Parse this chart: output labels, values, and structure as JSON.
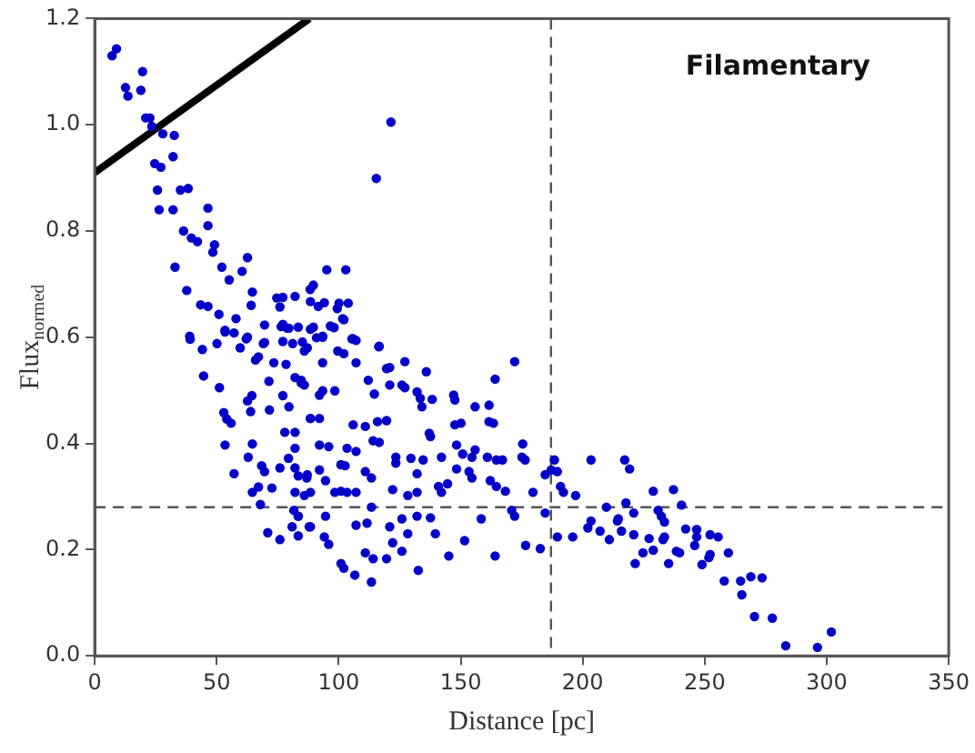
{
  "chart_data": {
    "type": "scatter",
    "xlabel": "Distance [pc]",
    "ylabel": "Flux$_{normed}$",
    "annotations": [
      "Filamentary"
    ],
    "xlim": [
      0,
      350
    ],
    "xticks": [
      0,
      50,
      100,
      150,
      200,
      250,
      300,
      350
    ],
    "ylim": [
      0,
      1.2
    ],
    "yticks": [
      {
        "value": 0,
        "label": "0.0"
      },
      {
        "value": 0.2,
        "label": "0.2"
      },
      {
        "value": 0.4,
        "label": "0.4"
      },
      {
        "value": 0.6,
        "label": "0.6"
      },
      {
        "value": 0.8,
        "label": "0.8"
      },
      {
        "value": 1,
        "label": "1.0"
      },
      {
        "value": 1.2,
        "label": "1.2"
      }
    ],
    "grid": false,
    "legend": false,
    "marker": "circle",
    "ref_lines": [
      {
        "axis": "x",
        "value": 187,
        "color": "#555555",
        "line_style": "dashed"
      },
      {
        "axis": "y",
        "value": 0.28,
        "color": "#555555",
        "line_style": "dashed"
      }
    ],
    "series": [
      {
        "color": "#0000c8",
        "x": [
          7.1,
          8.9,
          12.6,
          13.6,
          18.9,
          19.6,
          20.9,
          22.6,
          23.4,
          27.9,
          32.6,
          24.6,
          27.1,
          32.1,
          25.7,
          35.1,
          38.3,
          26.4,
          32.1,
          36.4,
          39.6,
          42.1,
          46.4,
          46.4,
          32.9,
          49.1,
          48.4,
          52.1,
          55.1,
          60.4,
          62.6,
          37.7,
          43.4,
          46.4,
          50.9,
          57.9,
          53.4,
          64.6,
          64.1,
          74.6,
          77.1,
          82.1,
          75.9,
          69.6,
          77.1,
          78.9,
          62.6,
          69.6,
          88.4,
          88.3,
          38.9,
          39.1,
          44.1,
          50.1,
          53.4,
          57.1,
          59.6,
          62.1,
          69.1,
          76.4,
          79.6,
          77.1,
          81.1,
          85.9,
          67.1,
          65.9,
          73.4,
          78.4,
          44.6,
          51.1,
          71.4,
          82.1,
          84.6,
          62.6,
          64.4,
          77.1,
          71.6,
          79.6,
          63.9,
          88.4,
          52.9,
          54.1,
          55.9,
          53.4,
          64.6,
          77.9,
          82.1,
          62.9,
          79.4,
          57.1,
          68.4,
          69.6,
          75.9,
          82.1,
          83.4,
          86.9,
          64.6,
          67.1,
          72.6,
          67.9,
          81.6,
          83.4,
          80.9,
          87.9,
          70.9,
          75.9,
          83.4,
          121.4,
          115.4,
          95.1,
          102.9,
          89.6,
          100.1,
          103.9,
          91.6,
          94.1,
          99.4,
          102.1,
          88.4,
          93.4,
          90.9,
          98.1,
          105.4,
          107.1,
          116.4,
          83.4,
          89.6,
          93.4,
          96.6,
          101.6,
          85.1,
          87.1,
          99.6,
          102.1,
          105.9,
          116.6,
          93.4,
          107.1,
          84.6,
          85.9,
          112.1,
          119.6,
          120.9,
          127.1,
          120.9,
          125.9,
          127.1,
          135.9,
          92.1,
          93.4,
          98.4,
          114.6,
          132.1,
          133.4,
          134.1,
          138.3,
          147.1,
          147.6,
          155.9,
          161.6,
          164.1,
          172.1,
          88.4,
          92.1,
          105.9,
          110.9,
          115.9,
          119.6,
          137.1,
          137.6,
          147.6,
          150.1,
          161.6,
          163.4,
          82.1,
          92.1,
          95.9,
          103.4,
          107.1,
          114.1,
          116.6,
          123.4,
          123.4,
          129.6,
          134.6,
          142.1,
          148.3,
          150.8,
          154.6,
          155.9,
          160.9,
          164.6,
          167.1,
          175.1,
          176.4,
          175.4,
          188.4,
          184.6,
          187.1,
          189.6,
          203.4,
          87.1,
          92.1,
          94.6,
          100.9,
          102.6,
          110.9,
          113.4,
          132.1,
          140.9,
          142.1,
          144.6,
          148.3,
          153.4,
          154.6,
          162.1,
          164.6,
          168.3,
          82.1,
          85.9,
          88.4,
          98.4,
          100.9,
          103.4,
          107.1,
          122.1,
          128.3,
          132.1,
          179.6,
          190.9,
          192.1,
          197.1,
          83.4,
          88.4,
          94.6,
          107.1,
          111.6,
          113.4,
          120.9,
          125.9,
          128.3,
          132.1,
          137.6,
          139.6,
          158.4,
          170.9,
          172.1,
          184.6,
          189.6,
          195.9,
          203.4,
          202.1,
          207.1,
          210.9,
          214.6,
          94.1,
          95.9,
          110.9,
          114.1,
          119.6,
          122.1,
          125.9,
          100.9,
          102.1,
          106.6,
          113.4,
          132.6,
          145.1,
          151.6,
          164.1,
          176.6,
          182.6,
          217.2,
          219.2,
          209.7,
          214.2,
          215.9,
          217.7,
          220.9,
          220.9,
          227.2,
          224.7,
          221.5,
          228.9,
          230.9,
          232.2,
          233.5,
          232.9,
          233.5,
          228.9,
          235.2,
          237.2,
          240.5,
          238.4,
          239.7,
          242.2,
          246.7,
          246.7,
          245.9,
          252.2,
          255.5,
          251.7,
          252.2,
          248.9,
          259.7,
          258,
          264.7,
          268.9,
          273.5,
          265.2,
          270.4,
          277.7,
          283.2,
          296.2,
          301.9
        ],
        "values": [
          1.13,
          1.143,
          1.07,
          1.054,
          1.065,
          1.1,
          1.013,
          1.013,
          0.997,
          0.983,
          0.98,
          0.927,
          0.92,
          0.94,
          0.877,
          0.877,
          0.88,
          0.84,
          0.84,
          0.8,
          0.787,
          0.78,
          0.843,
          0.81,
          0.732,
          0.774,
          0.76,
          0.732,
          0.708,
          0.724,
          0.75,
          0.688,
          0.661,
          0.658,
          0.643,
          0.635,
          0.61,
          0.685,
          0.66,
          0.674,
          0.675,
          0.677,
          0.657,
          0.623,
          0.624,
          0.617,
          0.6,
          0.59,
          0.667,
          0.69,
          0.602,
          0.596,
          0.577,
          0.588,
          0.613,
          0.608,
          0.58,
          0.597,
          0.588,
          0.62,
          0.617,
          0.592,
          0.588,
          0.574,
          0.563,
          0.557,
          0.552,
          0.549,
          0.527,
          0.505,
          0.517,
          0.524,
          0.514,
          0.48,
          0.49,
          0.49,
          0.463,
          0.469,
          0.46,
          0.447,
          0.458,
          0.446,
          0.438,
          0.397,
          0.399,
          0.421,
          0.421,
          0.374,
          0.372,
          0.343,
          0.358,
          0.347,
          0.354,
          0.354,
          0.339,
          0.335,
          0.308,
          0.318,
          0.316,
          0.285,
          0.274,
          0.263,
          0.243,
          0.243,
          0.232,
          0.219,
          0.226,
          1.005,
          0.899,
          0.727,
          0.727,
          0.698,
          0.664,
          0.664,
          0.658,
          0.665,
          0.654,
          0.633,
          0.615,
          0.6,
          0.599,
          0.618,
          0.597,
          0.594,
          0.582,
          0.619,
          0.619,
          0.602,
          0.621,
          0.635,
          0.591,
          0.58,
          0.574,
          0.569,
          0.597,
          0.583,
          0.552,
          0.552,
          0.519,
          0.51,
          0.519,
          0.541,
          0.543,
          0.554,
          0.51,
          0.51,
          0.505,
          0.535,
          0.491,
          0.499,
          0.499,
          0.493,
          0.497,
          0.485,
          0.469,
          0.483,
          0.491,
          0.482,
          0.469,
          0.472,
          0.521,
          0.554,
          0.447,
          0.447,
          0.435,
          0.432,
          0.441,
          0.443,
          0.419,
          0.413,
          0.435,
          0.438,
          0.441,
          0.438,
          0.391,
          0.397,
          0.394,
          0.391,
          0.385,
          0.405,
          0.402,
          0.374,
          0.363,
          0.372,
          0.369,
          0.374,
          0.397,
          0.38,
          0.374,
          0.388,
          0.374,
          0.369,
          0.369,
          0.374,
          0.369,
          0.399,
          0.369,
          0.341,
          0.35,
          0.347,
          0.369,
          0.341,
          0.35,
          0.33,
          0.36,
          0.358,
          0.347,
          0.335,
          0.343,
          0.319,
          0.308,
          0.324,
          0.352,
          0.347,
          0.335,
          0.33,
          0.319,
          0.31,
          0.308,
          0.302,
          0.308,
          0.308,
          0.31,
          0.308,
          0.308,
          0.313,
          0.302,
          0.308,
          0.308,
          0.319,
          0.308,
          0.302,
          0.263,
          0.243,
          0.263,
          0.246,
          0.25,
          0.28,
          0.243,
          0.258,
          0.23,
          0.263,
          0.26,
          0.23,
          0.258,
          0.274,
          0.263,
          0.269,
          0.224,
          0.224,
          0.254,
          0.241,
          0.235,
          0.219,
          0.258,
          0.224,
          0.21,
          0.194,
          0.183,
          0.183,
          0.213,
          0.197,
          0.174,
          0.165,
          0.152,
          0.139,
          0.161,
          0.188,
          0.217,
          0.188,
          0.208,
          0.202,
          0.369,
          0.352,
          0.28,
          0.254,
          0.235,
          0.288,
          0.269,
          0.228,
          0.221,
          0.194,
          0.174,
          0.31,
          0.274,
          0.263,
          0.252,
          0.219,
          0.224,
          0.199,
          0.174,
          0.313,
          0.284,
          0.197,
          0.194,
          0.239,
          0.238,
          0.224,
          0.208,
          0.228,
          0.224,
          0.185,
          0.191,
          0.172,
          0.194,
          0.141,
          0.141,
          0.149,
          0.147,
          0.115,
          0.074,
          0.071,
          0.019,
          0.016,
          0.045
        ]
      },
      {
        "type": "line",
        "color": "#000000",
        "marker": "none",
        "x": [
          0,
          88
        ],
        "values": [
          0.91,
          1.2
        ]
      }
    ]
  }
}
